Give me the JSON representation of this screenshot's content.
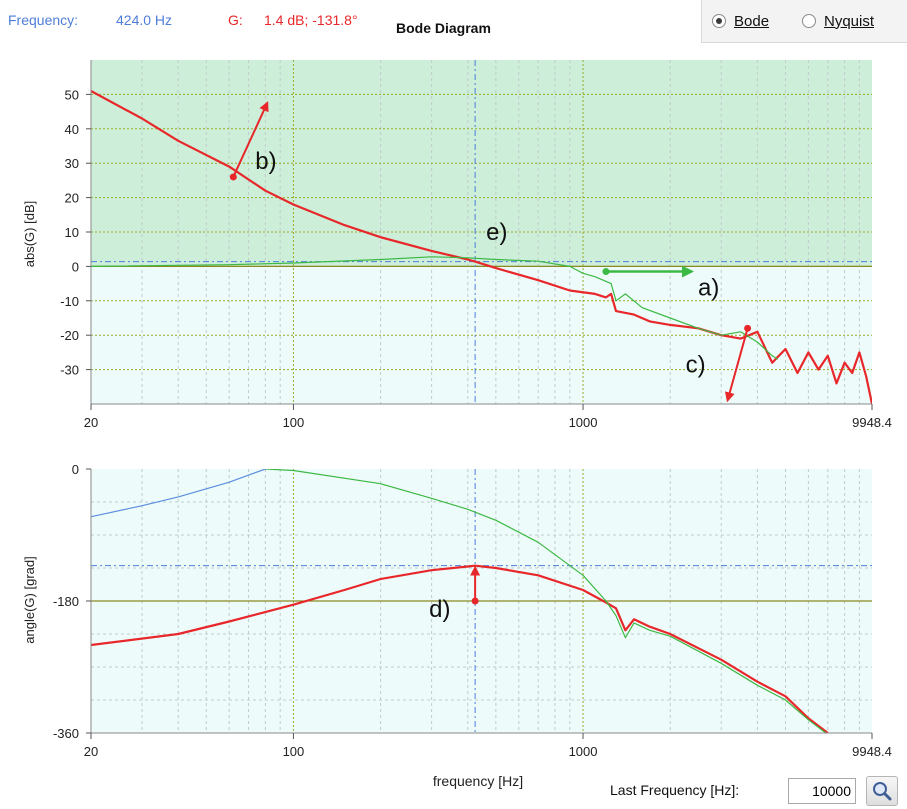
{
  "readout": {
    "frequency_label": "Frequency:",
    "frequency_value": "424.0 Hz",
    "gain_label": "G:",
    "gain_value": "1.4 dB; -131.8°"
  },
  "mode": {
    "bode_label": "Bode",
    "nyquist_label": "Nyquist",
    "selected": "bode"
  },
  "footer": {
    "last_frequency_label": "Last Frequency [Hz]:",
    "last_frequency_value": "10000",
    "zoom_icon": "magnifier-icon"
  },
  "colors": {
    "gain_curve": "#e8272a",
    "reference_curve": "#3cb944",
    "phase_reference_curve": "#5b8ee0",
    "cursor": "#4f7ed8",
    "zero_line": "#8a8a20",
    "stable_region": "#cdeed8",
    "unstable_region": "#eefbfb",
    "annotation_red": "#e8272a",
    "annotation_green": "#3cb944"
  },
  "chart_data": [
    {
      "type": "line",
      "title": "Bode Diagram",
      "xlabel": "",
      "ylabel": "abs(G) [dB]",
      "xscale": "log",
      "xlim": [
        20,
        9948.4
      ],
      "ylim": [
        -40,
        60
      ],
      "xticks": [
        "20",
        "100",
        "1000",
        "9948.4"
      ],
      "yticks": [
        50,
        40,
        30,
        20,
        10,
        0,
        -10,
        -20,
        -30
      ],
      "grid": true,
      "cursor": {
        "x": 424.0,
        "y": 1.4
      },
      "series": [
        {
          "color": "#e8272a",
          "x": [
            20,
            30,
            40,
            60,
            80,
            100,
            150,
            200,
            300,
            400,
            424,
            500,
            700,
            900,
            1100,
            1200,
            1250,
            1300,
            1500,
            1700,
            2000,
            2500,
            3000,
            3500,
            4000,
            4500,
            5000,
            5500,
            6000,
            6500,
            7000,
            7500,
            8000,
            8500,
            9000,
            9500,
            9948.4
          ],
          "y": [
            51,
            43,
            36.5,
            29,
            22,
            18,
            12,
            8.5,
            4.5,
            2,
            1.4,
            -0.5,
            -4,
            -7,
            -8,
            -9,
            -8,
            -13,
            -14,
            -16,
            -17,
            -18,
            -20,
            -21,
            -19,
            -28,
            -24,
            -31,
            -25,
            -30,
            -26,
            -34,
            -28,
            -31,
            -25,
            -32,
            -40
          ]
        },
        {
          "color": "#3cb944",
          "x": [
            20,
            60,
            100,
            200,
            300,
            400,
            500,
            700,
            900,
            1000,
            1100,
            1250,
            1300,
            1400,
            1600,
            2000,
            2500,
            3000,
            3500,
            4000,
            4500,
            4700
          ],
          "y": [
            0,
            0.5,
            1,
            2,
            2.8,
            2.5,
            2,
            1.5,
            0,
            -2,
            -3,
            -5,
            -10,
            -8,
            -12,
            -15,
            -18,
            -20,
            -19,
            -22,
            -26,
            -27
          ]
        }
      ],
      "annotations": [
        {
          "label": "a)",
          "x": 1200,
          "y": -1.5
        },
        {
          "label": "b)",
          "x": 62,
          "y": 26
        },
        {
          "label": "c)",
          "x": 3700,
          "y": -18
        },
        {
          "label": "e)",
          "x": 700,
          "y": 10
        }
      ]
    },
    {
      "type": "line",
      "xlabel": "frequency [Hz]",
      "ylabel": "angle(G) [grad]",
      "xscale": "log",
      "xlim": [
        20,
        9948.4
      ],
      "ylim": [
        -360,
        0
      ],
      "xticks": [
        "20",
        "100",
        "1000",
        "9948.4"
      ],
      "yticks": [
        0,
        -180,
        -360
      ],
      "grid": true,
      "cursor": {
        "x": 424.0,
        "y": -131.8
      },
      "series": [
        {
          "color": "#e8272a",
          "x": [
            20,
            40,
            60,
            100,
            150,
            200,
            300,
            400,
            424,
            500,
            700,
            1000,
            1200,
            1300,
            1400,
            1500,
            1700,
            2000,
            3000,
            4000,
            5000,
            6000,
            7000
          ],
          "y": [
            -240,
            -225,
            -208,
            -185,
            -165,
            -150,
            -138,
            -133,
            -131.8,
            -135,
            -145,
            -165,
            -182,
            -190,
            -220,
            -205,
            -215,
            -225,
            -260,
            -290,
            -310,
            -340,
            -360
          ]
        },
        {
          "color": "#3cb944",
          "x": [
            80,
            100,
            200,
            300,
            400,
            500,
            700,
            1000,
            1200,
            1300,
            1400,
            1500,
            1700,
            2000,
            3000,
            4000,
            5000,
            6000,
            7000
          ],
          "y": [
            0,
            -2,
            -20,
            -40,
            -55,
            -70,
            -100,
            -145,
            -180,
            -200,
            -230,
            -210,
            -220,
            -228,
            -265,
            -295,
            -315,
            -342,
            -362
          ]
        },
        {
          "color": "#5b8ee0",
          "x": [
            20,
            30,
            40,
            60,
            80
          ],
          "y": [
            -65,
            -50,
            -38,
            -18,
            0
          ]
        }
      ],
      "annotations": [
        {
          "label": "d)",
          "x": 424,
          "y": -180
        }
      ]
    }
  ]
}
